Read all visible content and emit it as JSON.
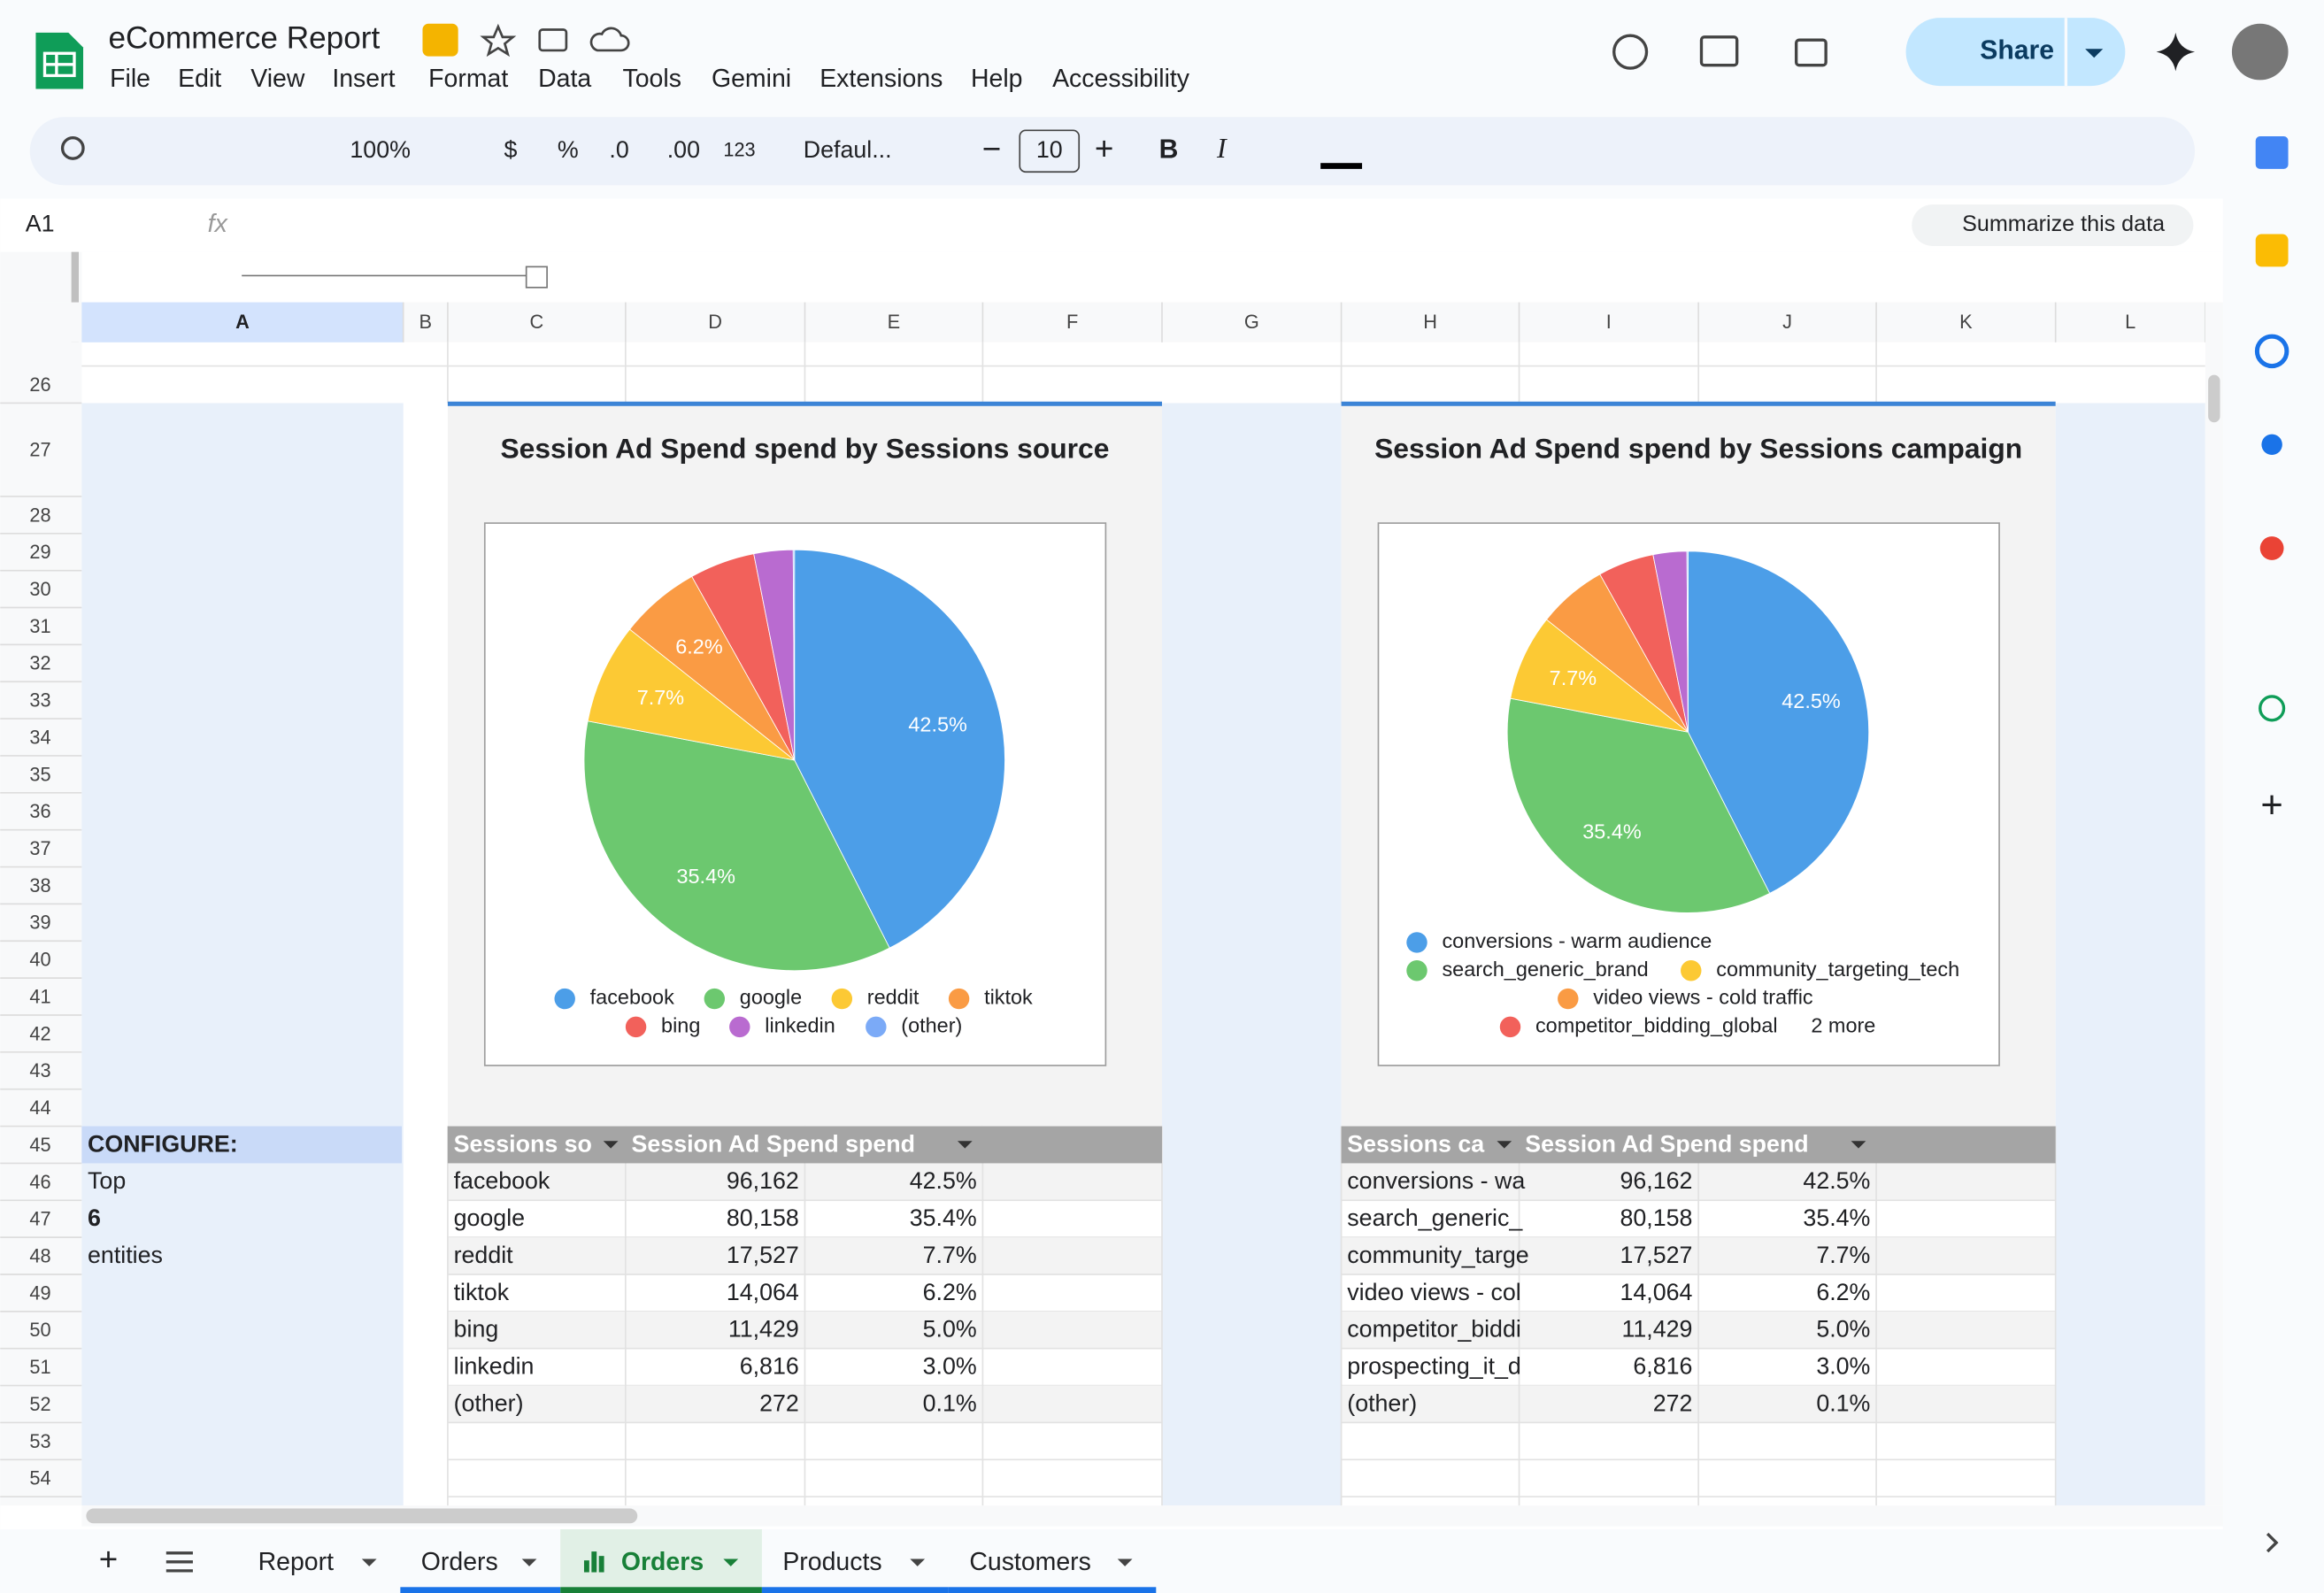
{
  "header": {
    "title": "eCommerce Report",
    "menu": [
      "File",
      "Edit",
      "View",
      "Insert",
      "Format",
      "Data",
      "Tools",
      "Gemini",
      "Extensions",
      "Help",
      "Accessibility"
    ],
    "share": "Share"
  },
  "toolbar": [
    "100%",
    "$",
    "%",
    ".0",
    ".00",
    "123",
    "Defaul...",
    "10",
    "B",
    "I"
  ],
  "formula_bar": {
    "cell": "A1",
    "fx": "fx",
    "summarize": "Summarize this data"
  },
  "columns": [
    "A",
    "B",
    "C",
    "D",
    "E",
    "F",
    "G",
    "H",
    "I",
    "J",
    "K",
    "L"
  ],
  "rows": [
    26,
    27,
    28,
    29,
    30,
    31,
    32,
    33,
    34,
    35,
    36,
    37,
    38,
    39,
    40,
    41,
    42,
    43,
    44,
    45,
    46,
    47,
    48,
    49,
    50,
    51,
    52,
    53,
    54
  ],
  "configure": [
    "CONFIGURE:",
    "Top",
    "6",
    "entities"
  ],
  "chart_data": [
    {
      "type": "pie",
      "title": "Session Ad Spend spend by Sessions source",
      "categories": [
        "facebook",
        "google",
        "reddit",
        "tiktok",
        "bing",
        "linkedin",
        "(other)"
      ],
      "values": [
        42.5,
        35.4,
        7.7,
        6.2,
        5.0,
        3.0,
        0.1
      ],
      "value_labels": [
        "42.5%",
        "35.4%",
        "7.7%",
        "6.2%",
        null,
        null,
        null
      ],
      "colors": [
        "#4c9ee8",
        "#6cc86f",
        "#fcc934",
        "#fa9b44",
        "#f2615b",
        "#b96bd0",
        "#7baaf7"
      ]
    },
    {
      "type": "pie",
      "title": "Session Ad Spend spend by Sessions campaign",
      "categories": [
        "conversions - warm audience",
        "search_generic_brand",
        "community_targeting_tech",
        "video views - cold traffic",
        "competitor_bidding_global",
        null,
        null
      ],
      "legend_more": "2 more",
      "values": [
        42.5,
        35.4,
        7.7,
        6.2,
        5.0,
        3.0,
        0.1
      ],
      "value_labels": [
        "42.5%",
        "35.4%",
        "7.7%",
        null,
        null,
        null,
        null
      ],
      "colors": [
        "#4c9ee8",
        "#6cc86f",
        "#fcc934",
        "#fa9b44",
        "#f2615b",
        "#b96bd0",
        "#7baaf7"
      ]
    }
  ],
  "tables": [
    {
      "headers": [
        "Sessions so",
        "Session Ad Spend spend"
      ],
      "rows": [
        [
          "facebook",
          "96,162",
          "42.5%"
        ],
        [
          "google",
          "80,158",
          "35.4%"
        ],
        [
          "reddit",
          "17,527",
          "7.7%"
        ],
        [
          "tiktok",
          "14,064",
          "6.2%"
        ],
        [
          "bing",
          "11,429",
          "5.0%"
        ],
        [
          "linkedin",
          "6,816",
          "3.0%"
        ],
        [
          "(other)",
          "272",
          "0.1%"
        ]
      ]
    },
    {
      "headers": [
        "Sessions ca",
        "Session Ad Spend spend"
      ],
      "rows": [
        [
          "conversions - wa",
          "96,162",
          "42.5%"
        ],
        [
          "search_generic_",
          "80,158",
          "35.4%"
        ],
        [
          "community_targe",
          "17,527",
          "7.7%"
        ],
        [
          "video views - col",
          "14,064",
          "6.2%"
        ],
        [
          "competitor_biddi",
          "11,429",
          "5.0%"
        ],
        [
          "prospecting_it_d",
          "6,816",
          "3.0%"
        ],
        [
          "(other)",
          "272",
          "0.1%"
        ]
      ]
    }
  ],
  "sheet_tabs": [
    "Report",
    "Orders",
    "Orders",
    "Products",
    "Customers"
  ]
}
